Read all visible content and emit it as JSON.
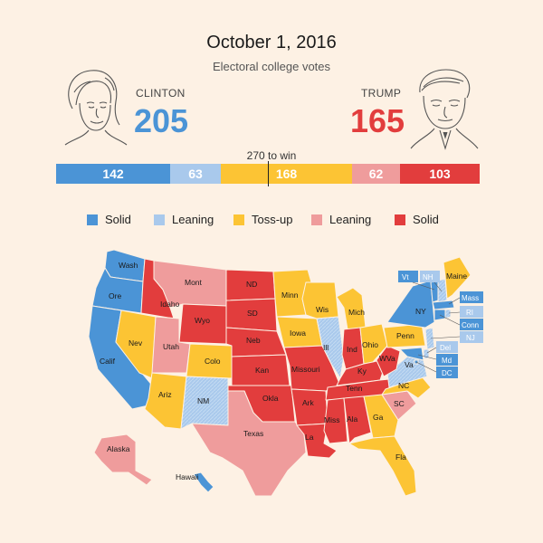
{
  "title": "October 1, 2016",
  "subtitle": "Electoral college votes",
  "candidates": {
    "left": {
      "name": "CLINTON",
      "votes": "205",
      "color": "#4b94d6"
    },
    "right": {
      "name": "TRUMP",
      "votes": "165",
      "color": "#e23d3d"
    }
  },
  "win_label": "270 to win",
  "bar": [
    {
      "value": "142",
      "category": "clinton-solid",
      "color": "#4b94d6"
    },
    {
      "value": "63",
      "category": "clinton-leaning",
      "color": "#a9c9ec"
    },
    {
      "value": "168",
      "category": "toss-up",
      "color": "#fcc434"
    },
    {
      "value": "62",
      "category": "trump-leaning",
      "color": "#ef9c9c"
    },
    {
      "value": "103",
      "category": "trump-solid",
      "color": "#e23d3d"
    }
  ],
  "legend": [
    {
      "label": "Solid",
      "color": "#4b94d6"
    },
    {
      "label": "Leaning",
      "color": "#a9c9ec"
    },
    {
      "label": "Toss-up",
      "color": "#fcc434"
    },
    {
      "label": "Leaning",
      "color": "#ef9c9c"
    },
    {
      "label": "Solid",
      "color": "#e23d3d"
    }
  ],
  "states": {
    "Wash": "clinton-solid",
    "Ore": "clinton-solid",
    "Calif": "clinton-solid",
    "Idaho": "trump-solid",
    "Nev": "toss-up",
    "Mont": "trump-leaning",
    "Wyo": "trump-solid",
    "Utah": "trump-leaning",
    "Colo": "toss-up",
    "Ariz": "toss-up",
    "NM": "clinton-leaning",
    "ND": "trump-solid",
    "SD": "trump-solid",
    "Neb": "trump-solid",
    "Kan": "trump-solid",
    "Okla": "trump-solid",
    "Texas": "trump-leaning",
    "Minn": "toss-up",
    "Iowa": "toss-up",
    "Missouri": "trump-solid",
    "Ark": "trump-solid",
    "La": "trump-solid",
    "Wis": "toss-up",
    "Ill": "clinton-leaning",
    "Mich": "toss-up",
    "Ind": "trump-solid",
    "Ohio": "toss-up",
    "Ky": "trump-solid",
    "Tenn": "trump-solid",
    "Miss": "trump-solid",
    "Ala": "trump-solid",
    "Ga": "toss-up",
    "Fla": "toss-up",
    "SC": "trump-leaning",
    "NC": "toss-up",
    "Va": "clinton-leaning",
    "WVa": "trump-solid",
    "Penn": "toss-up",
    "NY": "clinton-solid",
    "Maine": "toss-up",
    "Alaska": "trump-leaning",
    "Hawaii": "clinton-solid",
    "Vt": "clinton-solid",
    "NH": "clinton-leaning",
    "Mass": "clinton-solid",
    "RI": "clinton-leaning",
    "Conn": "clinton-solid",
    "NJ": "clinton-leaning",
    "Del": "clinton-leaning",
    "Md": "clinton-solid",
    "DC": "clinton-solid"
  }
}
